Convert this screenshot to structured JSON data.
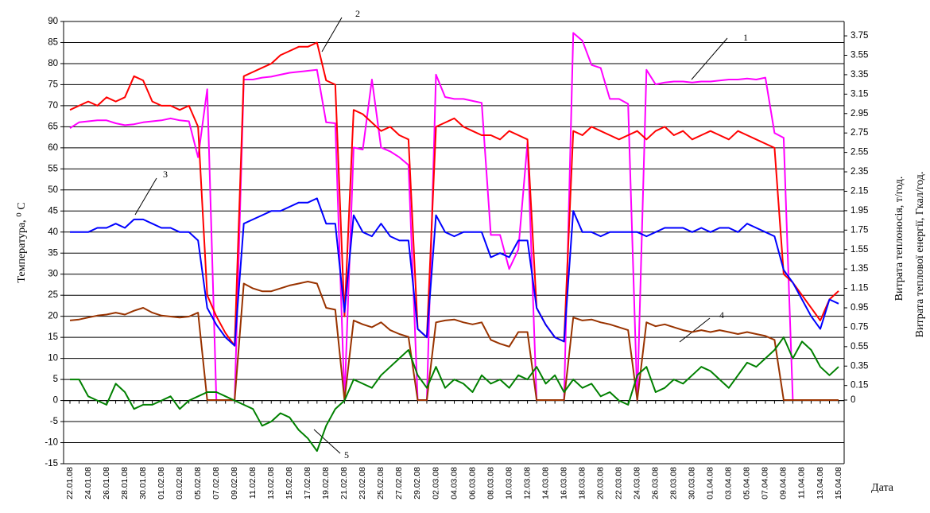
{
  "chart_data": {
    "type": "line",
    "y_label": "Температура, ⁰ C",
    "y2_labels": [
      "Витрата теплоносія, т/год.",
      "Витрата теплової енергії, Гкал/год."
    ],
    "x_label": "Дата",
    "categories": [
      "22.01.08",
      null,
      "24.01.08",
      null,
      "26.01.08",
      null,
      "28.01.08",
      null,
      "30.01.08",
      null,
      "01.02.08",
      null,
      "03.02.08",
      null,
      "05.02.08",
      null,
      "07.02.08",
      null,
      "09.02.08",
      null,
      "11.02.08",
      null,
      "13.02.08",
      null,
      "15.02.08",
      null,
      "17.02.08",
      null,
      "19.02.08",
      null,
      "21.02.08",
      null,
      "23.02.08",
      null,
      "25.02.08",
      null,
      "27.02.08",
      null,
      "29.02.08",
      null,
      "02.03.08",
      null,
      "04.03.08",
      null,
      "06.03.08",
      null,
      "08.03.08",
      null,
      "10.03.08",
      null,
      "12.03.08",
      null,
      "14.03.08",
      null,
      "16.03.08",
      null,
      "18.03.08",
      null,
      "20.03.08",
      null,
      "22.03.08",
      null,
      "24.03.08",
      null,
      "26.03.08",
      null,
      "28.03.08",
      null,
      "30.03.08",
      null,
      "01.04.08",
      null,
      "03.04.08",
      null,
      "05.04.08",
      null,
      "07.04.08",
      null,
      "09.04.08",
      null,
      "11.04.08",
      null,
      "13.04.08",
      null,
      "15.04.08"
    ],
    "series": [
      {
        "name": "1",
        "color": "#ff00ff",
        "axis": "y2",
        "values": [
          2.8,
          2.86,
          2.87,
          2.88,
          2.88,
          2.85,
          2.83,
          2.84,
          2.86,
          2.87,
          2.88,
          2.9,
          2.88,
          2.87,
          2.5,
          3.2,
          0,
          0,
          0,
          3.3,
          3.3,
          3.32,
          3.33,
          3.35,
          3.37,
          3.38,
          3.39,
          3.4,
          2.86,
          2.85,
          0,
          2.6,
          2.58,
          3.3,
          2.6,
          2.56,
          2.5,
          2.42,
          0,
          0,
          3.35,
          3.12,
          3.1,
          3.1,
          3.08,
          3.06,
          1.7,
          1.7,
          1.35,
          1.55,
          2.65,
          0,
          0,
          0,
          0,
          3.78,
          3.7,
          3.45,
          3.42,
          3.1,
          3.1,
          3.05,
          0,
          3.4,
          3.25,
          3.27,
          3.28,
          3.28,
          3.27,
          3.28,
          3.28,
          3.29,
          3.3,
          3.3,
          3.31,
          3.3,
          3.32,
          2.75,
          2.7,
          0,
          0,
          0,
          0,
          0,
          0
        ]
      },
      {
        "name": "2",
        "color": "#ff0000",
        "values": [
          69,
          70,
          71,
          70,
          72,
          71,
          72,
          77,
          76,
          71,
          70,
          70,
          69,
          70,
          65,
          25,
          20,
          16,
          13,
          77,
          78,
          79,
          80,
          82,
          83,
          84,
          84,
          85,
          76,
          75,
          20,
          69,
          68,
          66,
          64,
          65,
          63,
          62,
          17,
          15,
          65,
          66,
          67,
          65,
          64,
          63,
          63,
          62,
          64,
          63,
          62,
          22,
          18,
          15,
          14,
          64,
          63,
          65,
          64,
          63,
          62,
          63,
          64,
          62,
          64,
          65,
          63,
          64,
          62,
          63,
          64,
          63,
          62,
          64,
          63,
          62,
          61,
          60,
          30,
          28,
          25,
          22,
          19,
          24,
          26
        ]
      },
      {
        "name": "3",
        "color": "#0000ff",
        "values": [
          40,
          40,
          40,
          41,
          41,
          42,
          41,
          43,
          43,
          42,
          41,
          41,
          40,
          40,
          38,
          22,
          18,
          15,
          13,
          42,
          43,
          44,
          45,
          45,
          46,
          47,
          47,
          48,
          42,
          42,
          21,
          44,
          40,
          39,
          42,
          39,
          38,
          38,
          17,
          15,
          44,
          40,
          39,
          40,
          40,
          40,
          34,
          35,
          34,
          38,
          38,
          22,
          18,
          15,
          14,
          45,
          40,
          40,
          39,
          40,
          40,
          40,
          40,
          39,
          40,
          41,
          41,
          41,
          40,
          41,
          40,
          41,
          41,
          40,
          42,
          41,
          40,
          39,
          31,
          28,
          24,
          20,
          17,
          24,
          23
        ]
      },
      {
        "name": "4",
        "color": "#993300",
        "axis": "y2",
        "values": [
          0.82,
          0.83,
          0.85,
          0.87,
          0.88,
          0.9,
          0.88,
          0.92,
          0.95,
          0.9,
          0.87,
          0.86,
          0.85,
          0.86,
          0.9,
          0,
          0,
          0,
          0,
          1.2,
          1.15,
          1.12,
          1.12,
          1.15,
          1.18,
          1.2,
          1.22,
          1.2,
          0.95,
          0.93,
          0,
          0.82,
          0.78,
          0.75,
          0.8,
          0.72,
          0.68,
          0.65,
          0,
          0,
          0.8,
          0.82,
          0.83,
          0.8,
          0.78,
          0.8,
          0.62,
          0.58,
          0.55,
          0.7,
          0.7,
          0,
          0,
          0,
          0,
          0.85,
          0.82,
          0.83,
          0.8,
          0.78,
          0.75,
          0.72,
          0,
          0.8,
          0.76,
          0.78,
          0.75,
          0.72,
          0.7,
          0.72,
          0.7,
          0.72,
          0.7,
          0.68,
          0.7,
          0.68,
          0.66,
          0.62,
          0,
          0,
          0,
          0,
          0,
          0,
          0
        ]
      },
      {
        "name": "5",
        "color": "#008000",
        "values": [
          5,
          5,
          1,
          0,
          -1,
          4,
          2,
          -2,
          -1,
          -1,
          0,
          1,
          -2,
          0,
          1,
          2,
          2,
          1,
          0,
          -1,
          -2,
          -6,
          -5,
          -3,
          -4,
          -7,
          -9,
          -12,
          -6,
          -2,
          0,
          5,
          4,
          3,
          6,
          8,
          10,
          12,
          6,
          3,
          8,
          3,
          5,
          4,
          2,
          6,
          4,
          5,
          3,
          6,
          5,
          8,
          4,
          6,
          2,
          5,
          3,
          4,
          1,
          2,
          0,
          -1,
          6,
          8,
          2,
          3,
          5,
          4,
          6,
          8,
          7,
          5,
          3,
          6,
          9,
          8,
          10,
          12,
          15,
          10,
          14,
          12,
          8,
          6,
          8
        ]
      }
    ],
    "ylim": [
      -15,
      90
    ],
    "yticks": [
      -15,
      -10,
      -5,
      0,
      5,
      10,
      15,
      20,
      25,
      30,
      35,
      40,
      45,
      50,
      55,
      60,
      65,
      70,
      75,
      80,
      85,
      90
    ],
    "y2lim": [
      -0.655,
      3.898
    ],
    "y2ticks": [
      0,
      0.15,
      0.35,
      0.55,
      0.75,
      0.95,
      1.15,
      1.35,
      1.55,
      1.75,
      1.95,
      2.15,
      2.35,
      2.55,
      2.75,
      2.95,
      3.15,
      3.35,
      3.55,
      3.75
    ],
    "grid": true
  }
}
